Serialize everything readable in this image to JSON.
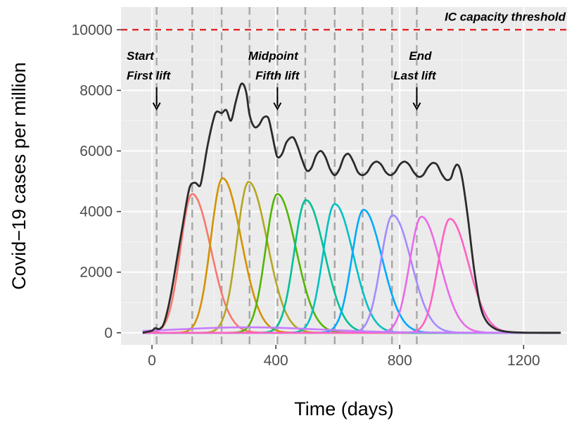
{
  "chart_data": {
    "type": "line",
    "title": "",
    "xlabel": "Time (days)",
    "ylabel": "Covid−19 cases per million",
    "xlim": [
      -100,
      1340
    ],
    "ylim": [
      -400,
      10750
    ],
    "x_ticks": [
      0,
      400,
      800,
      1200
    ],
    "x_tick_labels": [
      "0",
      "400",
      "800",
      "1200"
    ],
    "y_ticks": [
      0,
      2000,
      4000,
      6000,
      8000,
      10000
    ],
    "y_tick_labels": [
      "0",
      "2000",
      "4000",
      "6000",
      "8000",
      "10000"
    ],
    "grid": true,
    "legend": "none",
    "threshold": {
      "y": 10000,
      "label": "IC capacity threshold",
      "color": "#e41a1c"
    },
    "lift_days": [
      15,
      130,
      225,
      315,
      405,
      495,
      590,
      680,
      775,
      855
    ],
    "annotations": [
      {
        "lines": [
          "Start",
          "First lift"
        ],
        "x": 15
      },
      {
        "lines": [
          "Midpoint",
          "Fifth lift"
        ],
        "x": 405
      },
      {
        "lines": [
          "End",
          "Last lift"
        ],
        "x": 855
      }
    ],
    "total_series": {
      "color": "#2b2b2b",
      "x": [
        -30,
        0,
        10,
        25,
        40,
        60,
        80,
        100,
        115,
        125,
        140,
        155,
        165,
        180,
        200,
        210,
        225,
        240,
        255,
        270,
        285,
        295,
        305,
        315,
        330,
        345,
        360,
        375,
        385,
        395,
        405,
        420,
        435,
        455,
        470,
        485,
        500,
        515,
        530,
        545,
        560,
        575,
        590,
        605,
        620,
        635,
        650,
        665,
        680,
        695,
        710,
        725,
        740,
        755,
        770,
        785,
        800,
        815,
        830,
        845,
        860,
        875,
        890,
        905,
        920,
        935,
        950,
        965,
        975,
        985,
        995,
        1005,
        1020,
        1040,
        1060,
        1080,
        1110,
        1150,
        1200,
        1260,
        1320
      ],
      "y": [
        0,
        70,
        150,
        130,
        350,
        1200,
        2400,
        3600,
        4500,
        4880,
        4950,
        4850,
        5300,
        6200,
        7100,
        7300,
        7250,
        7350,
        7000,
        7600,
        8150,
        8200,
        7900,
        7200,
        6800,
        6850,
        7100,
        7100,
        6700,
        6200,
        5800,
        5900,
        6300,
        6450,
        6150,
        5700,
        5350,
        5450,
        5850,
        6000,
        5800,
        5400,
        5200,
        5400,
        5800,
        5900,
        5650,
        5300,
        5200,
        5300,
        5550,
        5650,
        5550,
        5300,
        5200,
        5300,
        5550,
        5650,
        5550,
        5300,
        5150,
        5200,
        5450,
        5600,
        5550,
        5250,
        5050,
        5100,
        5400,
        5550,
        5400,
        4900,
        3800,
        2100,
        900,
        380,
        120,
        30,
        5,
        0,
        0
      ]
    },
    "series": [
      {
        "peak_x": 130,
        "peak_y": 4580,
        "color": "#f8766d"
      },
      {
        "peak_x": 228,
        "peak_y": 5100,
        "color": "#d39200"
      },
      {
        "peak_x": 312,
        "peak_y": 4980,
        "color": "#b4a624"
      },
      {
        "peak_x": 405,
        "peak_y": 4580,
        "color": "#53b400"
      },
      {
        "peak_x": 497,
        "peak_y": 4380,
        "color": "#00c094"
      },
      {
        "peak_x": 590,
        "peak_y": 4250,
        "color": "#00c0c4"
      },
      {
        "peak_x": 683,
        "peak_y": 4060,
        "color": "#00a9ff"
      },
      {
        "peak_x": 777,
        "peak_y": 3880,
        "color": "#a58aff"
      },
      {
        "peak_x": 870,
        "peak_y": 3830,
        "color": "#ea6ae8"
      },
      {
        "peak_x": 962,
        "peak_y": 3760,
        "color": "#ff61c3"
      }
    ],
    "baseline_bump": {
      "center_x": 310,
      "height": 180,
      "color": "#c77cff"
    }
  }
}
